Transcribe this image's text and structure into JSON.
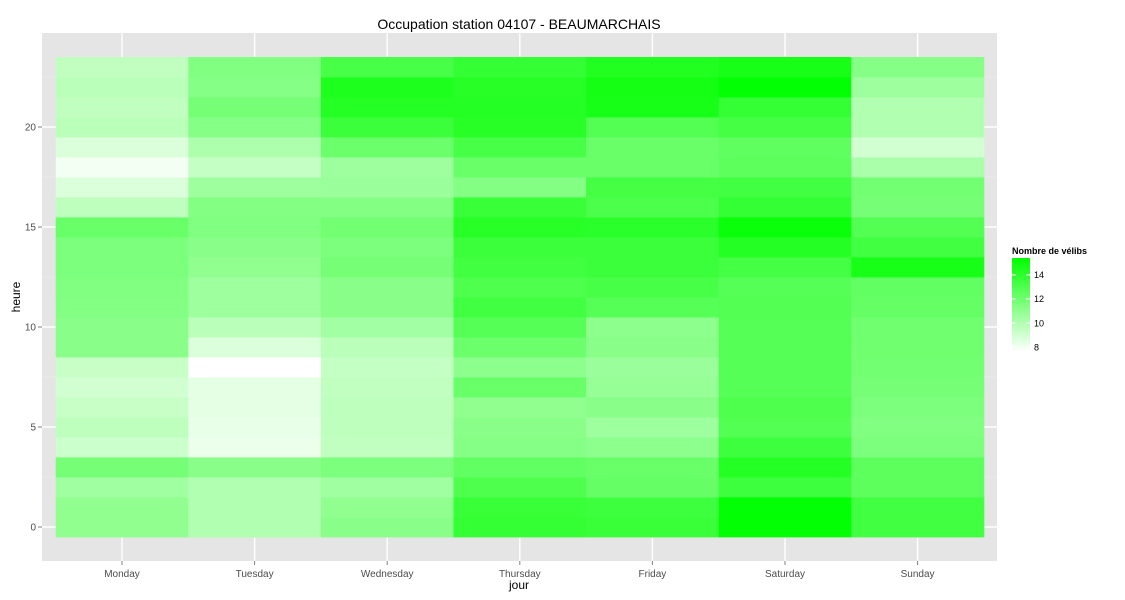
{
  "chart_data": {
    "type": "heatmap",
    "title": "Occupation station 04107 - BEAUMARCHAIS",
    "xlabel": "jour",
    "ylabel": "heure",
    "categories": [
      "Monday",
      "Tuesday",
      "Wednesday",
      "Thursday",
      "Friday",
      "Saturday",
      "Sunday"
    ],
    "y_values": [
      0,
      1,
      2,
      3,
      4,
      5,
      6,
      7,
      8,
      9,
      10,
      11,
      12,
      13,
      14,
      15,
      16,
      17,
      18,
      19,
      20,
      21,
      22,
      23
    ],
    "y_ticks": [
      0,
      5,
      10,
      15,
      20
    ],
    "ylim": [
      -0.5,
      23.5
    ],
    "grid": true,
    "legend": {
      "title": "Nombre de vélibs",
      "position": "right",
      "ticks": [
        8,
        10,
        12,
        14
      ],
      "range": [
        7.6,
        15.4
      ]
    },
    "colors": {
      "low": "#ffffff",
      "high": "#00ff00",
      "panel_background": "#e5e5e5",
      "grid": "#ffffff"
    },
    "values": [
      [
        11.0,
        10.0,
        11.2,
        13.8,
        13.7,
        15.3,
        13.4
      ],
      [
        11.0,
        10.0,
        11.0,
        13.7,
        13.5,
        15.3,
        13.4
      ],
      [
        10.5,
        10.0,
        10.5,
        13.0,
        12.3,
        13.5,
        12.6
      ],
      [
        11.8,
        11.2,
        11.6,
        12.4,
        12.2,
        14.3,
        12.6
      ],
      [
        9.2,
        8.2,
        9.5,
        11.3,
        11.1,
        13.5,
        11.6
      ],
      [
        9.6,
        8.3,
        9.6,
        11.2,
        10.6,
        12.9,
        11.5
      ],
      [
        9.3,
        8.4,
        9.6,
        11.0,
        11.2,
        13.0,
        11.6
      ],
      [
        9.0,
        8.4,
        9.5,
        12.2,
        10.8,
        12.8,
        11.8
      ],
      [
        9.3,
        7.6,
        9.4,
        11.1,
        10.7,
        12.8,
        11.9
      ],
      [
        11.2,
        8.7,
        9.7,
        12.1,
        11.2,
        12.8,
        12.0
      ],
      [
        11.2,
        9.7,
        10.4,
        12.8,
        11.1,
        12.8,
        12.0
      ],
      [
        11.4,
        10.6,
        11.2,
        13.4,
        12.8,
        12.9,
        12.3
      ],
      [
        11.5,
        10.6,
        11.2,
        13.0,
        13.2,
        12.8,
        12.4
      ],
      [
        11.6,
        11.0,
        11.8,
        13.4,
        13.6,
        13.3,
        14.7
      ],
      [
        11.6,
        11.2,
        11.6,
        13.6,
        13.6,
        14.3,
        13.4
      ],
      [
        12.2,
        11.5,
        11.9,
        14.2,
        14.1,
        15.1,
        12.9
      ],
      [
        9.6,
        11.4,
        11.4,
        13.7,
        13.1,
        13.8,
        11.8
      ],
      [
        8.7,
        10.6,
        10.7,
        11.4,
        13.3,
        13.4,
        11.9
      ],
      [
        8.0,
        9.4,
        10.6,
        12.2,
        12.2,
        12.6,
        10.2
      ],
      [
        8.7,
        10.1,
        12.1,
        13.2,
        12.2,
        12.5,
        9.0
      ],
      [
        9.7,
        11.3,
        13.6,
        14.2,
        12.9,
        13.3,
        10.0
      ],
      [
        9.5,
        11.8,
        14.3,
        14.3,
        14.7,
        13.8,
        10.0
      ],
      [
        9.7,
        11.3,
        14.5,
        14.2,
        14.8,
        15.3,
        10.6
      ],
      [
        9.5,
        11.5,
        13.2,
        13.8,
        14.4,
        14.7,
        11.3
      ]
    ]
  }
}
